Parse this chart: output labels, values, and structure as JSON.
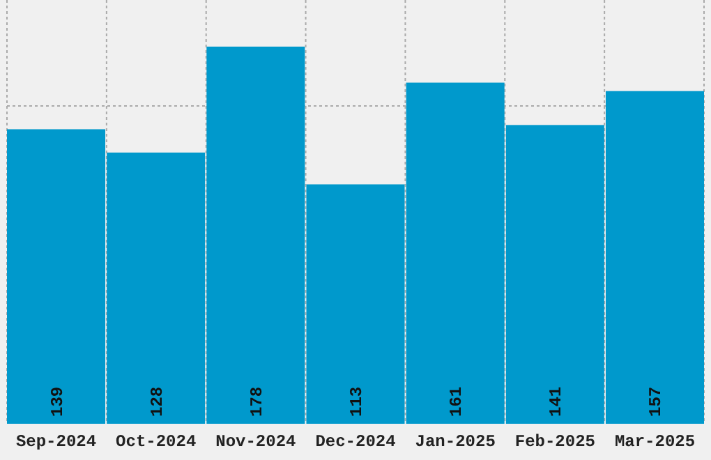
{
  "chart_data": {
    "type": "bar",
    "categories": [
      "Sep-2024",
      "Oct-2024",
      "Nov-2024",
      "Dec-2024",
      "Jan-2025",
      "Feb-2025",
      "Mar-2025"
    ],
    "values": [
      139,
      128,
      178,
      113,
      161,
      141,
      157
    ],
    "color": "#0099cc",
    "data_labels": true,
    "ylim": [
      0,
      200
    ],
    "yticks": [
      {
        "value": 50,
        "label": null
      },
      {
        "value": 100,
        "label": null
      },
      {
        "value": 150,
        "label": null
      }
    ],
    "grid": true,
    "tick_labels": "x"
  }
}
